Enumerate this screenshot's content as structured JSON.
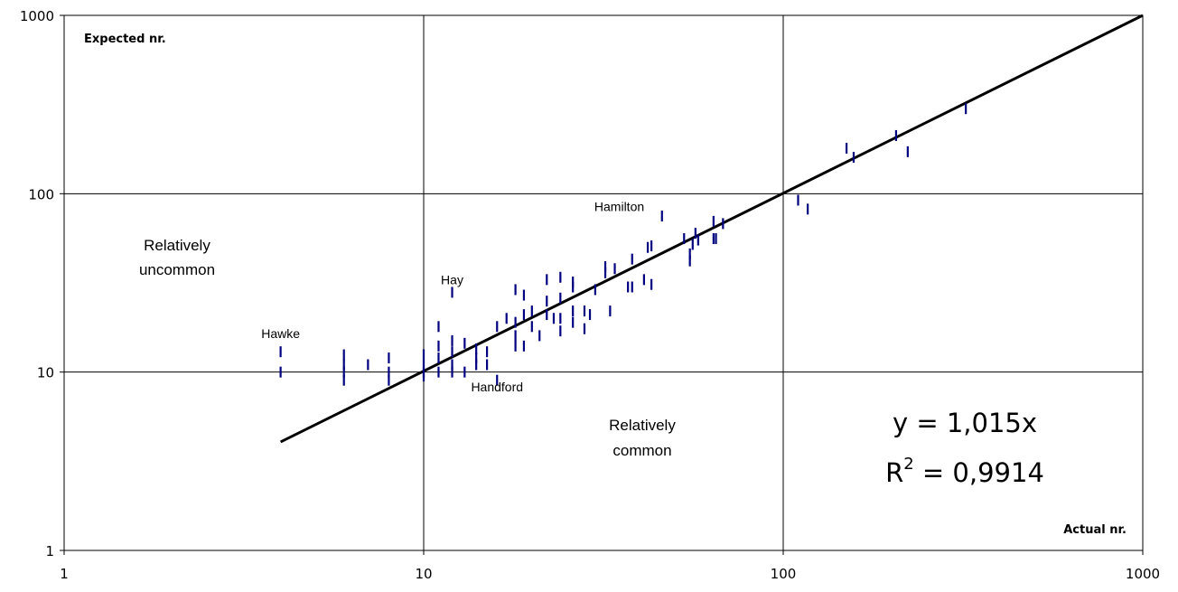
{
  "chart_data": {
    "type": "scatter",
    "x_scale": "log",
    "y_scale": "log",
    "xlim": [
      1,
      1000
    ],
    "ylim": [
      1,
      1000
    ],
    "grid": true,
    "x_ticks": [
      1,
      10,
      100,
      1000
    ],
    "y_ticks": [
      1,
      10,
      100,
      1000
    ],
    "x_tick_labels": [
      "1",
      "10",
      "100",
      "1000"
    ],
    "y_tick_labels": [
      "1",
      "10",
      "100",
      "1000"
    ],
    "xlabel": "Actual nr.",
    "ylabel": "Expected nr.",
    "marker_color": "#000080",
    "line_color": "#000000",
    "trendline": {
      "slope": 1.015,
      "x_range": [
        4,
        1000
      ]
    },
    "equation": {
      "line1": "y = 1,015x",
      "r2_prefix": "R",
      "r2_sup": "2",
      "r2_value": " = 0,9914"
    },
    "region_labels": {
      "upper": [
        "Relatively",
        "uncommon"
      ],
      "lower": [
        "Relatively",
        "common"
      ]
    },
    "annotations": [
      {
        "text": "Hawke",
        "x": 4,
        "y": 15.5
      },
      {
        "text": "Hay",
        "x": 12,
        "y": 31
      },
      {
        "text": "Handford",
        "x": 16,
        "y": 7.8
      },
      {
        "text": "Hamilton",
        "x": 35,
        "y": 80
      }
    ],
    "points": [
      [
        4,
        13
      ],
      [
        4,
        10
      ],
      [
        6,
        12.5
      ],
      [
        6,
        11
      ],
      [
        6,
        10
      ],
      [
        6,
        9
      ],
      [
        7,
        11
      ],
      [
        8,
        12
      ],
      [
        8,
        10
      ],
      [
        8,
        9
      ],
      [
        10,
        12.5
      ],
      [
        10,
        11
      ],
      [
        10,
        10
      ],
      [
        10,
        9.5
      ],
      [
        11,
        18
      ],
      [
        11,
        14
      ],
      [
        11,
        12
      ],
      [
        11,
        10
      ],
      [
        12,
        28
      ],
      [
        12,
        15
      ],
      [
        12,
        13
      ],
      [
        12,
        11
      ],
      [
        12,
        10
      ],
      [
        13,
        14.5
      ],
      [
        13,
        10
      ],
      [
        14,
        13.5
      ],
      [
        14,
        12
      ],
      [
        14,
        11
      ],
      [
        15,
        13
      ],
      [
        15,
        11
      ],
      [
        16,
        18
      ],
      [
        16,
        9
      ],
      [
        17,
        20
      ],
      [
        18,
        29
      ],
      [
        18,
        19
      ],
      [
        18,
        16
      ],
      [
        18,
        14
      ],
      [
        19,
        27
      ],
      [
        19,
        21
      ],
      [
        19,
        14
      ],
      [
        20,
        22
      ],
      [
        20,
        18
      ],
      [
        21,
        16
      ],
      [
        22,
        33
      ],
      [
        22,
        25
      ],
      [
        22,
        21
      ],
      [
        23,
        20
      ],
      [
        24,
        34
      ],
      [
        24,
        26
      ],
      [
        24,
        20
      ],
      [
        24,
        17
      ],
      [
        26,
        32
      ],
      [
        26,
        30
      ],
      [
        26,
        22
      ],
      [
        26,
        19
      ],
      [
        28,
        22
      ],
      [
        28,
        17.5
      ],
      [
        29,
        21
      ],
      [
        30,
        29
      ],
      [
        32,
        39
      ],
      [
        32,
        36
      ],
      [
        33,
        22
      ],
      [
        34,
        38
      ],
      [
        37,
        30
      ],
      [
        38,
        43
      ],
      [
        38,
        30
      ],
      [
        41,
        33
      ],
      [
        42,
        50
      ],
      [
        43,
        51
      ],
      [
        43,
        31
      ],
      [
        46,
        75
      ],
      [
        53,
        56
      ],
      [
        55,
        46
      ],
      [
        55,
        42
      ],
      [
        56,
        52
      ],
      [
        57,
        60
      ],
      [
        58,
        55
      ],
      [
        64,
        70
      ],
      [
        64,
        56
      ],
      [
        65,
        56
      ],
      [
        68,
        68
      ],
      [
        110,
        92
      ],
      [
        117,
        82
      ],
      [
        150,
        180
      ],
      [
        157,
        160
      ],
      [
        206,
        212
      ],
      [
        222,
        172
      ],
      [
        322,
        300
      ]
    ]
  }
}
